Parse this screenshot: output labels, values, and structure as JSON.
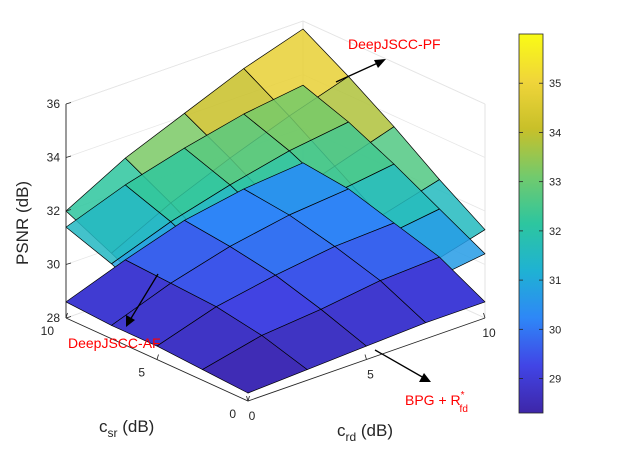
{
  "chart_data": {
    "type": "surface3d",
    "title": "",
    "xlabel_base": "c",
    "xlabel_sub": "rd",
    "xlabel_unit": " (dB)",
    "ylabel_base": "c",
    "ylabel_sub": "sr",
    "ylabel_unit": " (dB)",
    "zlabel": "PSNR (dB)",
    "xlim": [
      0,
      10
    ],
    "ylim": [
      0,
      10
    ],
    "zlim": [
      28,
      36
    ],
    "x_ticks": [
      "0",
      "5",
      "10"
    ],
    "y_ticks": [
      "0",
      "5",
      "10"
    ],
    "z_ticks": [
      "28",
      "30",
      "32",
      "34",
      "36"
    ],
    "grid": [
      0,
      2.5,
      5,
      7.5,
      10
    ],
    "surfaces": [
      {
        "name": "DeepJSCC-PF",
        "annotation": "DeepJSCC-PF",
        "z": [
          [
            28.3,
            29.2,
            30.0,
            30.7,
            31.3
          ],
          [
            29.3,
            30.3,
            31.1,
            31.8,
            32.4
          ],
          [
            30.3,
            31.3,
            32.2,
            32.9,
            33.6
          ],
          [
            31.2,
            32.3,
            33.2,
            34.0,
            34.7
          ],
          [
            32.0,
            33.2,
            34.1,
            35.0,
            35.7
          ]
        ]
      },
      {
        "name": "DeepJSCC-AF",
        "annotation": "DeepJSCC-AF",
        "z": [
          [
            28.3,
            29.0,
            29.6,
            30.1,
            30.4
          ],
          [
            29.2,
            29.9,
            30.5,
            31.0,
            31.3
          ],
          [
            30.0,
            30.8,
            31.4,
            31.9,
            32.2
          ],
          [
            30.8,
            31.6,
            32.2,
            32.7,
            33.0
          ],
          [
            31.4,
            32.2,
            32.8,
            33.3,
            33.6
          ]
        ]
      },
      {
        "name": "BPG + R*fd",
        "annotation_main": "BPG + R",
        "annotation_sup": "*",
        "annotation_sub": "fd",
        "z": [
          [
            28.3,
            28.4,
            28.5,
            28.6,
            28.6
          ],
          [
            28.4,
            28.9,
            29.1,
            29.4,
            29.5
          ],
          [
            28.5,
            29.2,
            29.6,
            29.9,
            30.0
          ],
          [
            28.5,
            29.3,
            29.9,
            30.3,
            30.5
          ],
          [
            28.6,
            29.4,
            30.1,
            30.5,
            30.7
          ]
        ]
      }
    ],
    "colorbar": {
      "range": [
        28.3,
        36
      ],
      "ticks": [
        "29",
        "30",
        "31",
        "32",
        "33",
        "34",
        "35"
      ],
      "colormap": "parula",
      "colormap_stops": [
        "#3e26a8",
        "#4145e6",
        "#2e87f7",
        "#1fb2d3",
        "#2dc69f",
        "#73ca6c",
        "#c8c029",
        "#f0d53a",
        "#f9fb15"
      ]
    },
    "surface_edge_color": "#000000",
    "annotation_color": "#ff0000"
  }
}
